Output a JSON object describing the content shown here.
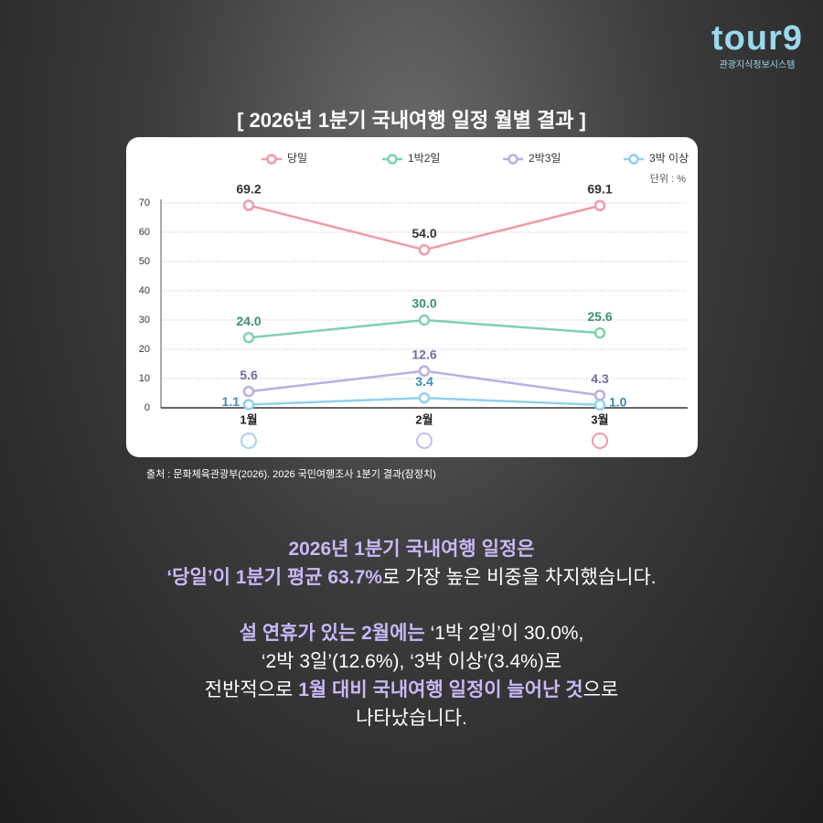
{
  "logo": {
    "name": "tour9",
    "subtitle": "관광지식정보시스템"
  },
  "chart_data": {
    "type": "line",
    "title": "[ 2026년 1분기 국내여행 일정 월별 결과 ]",
    "unit_label": "단위 : %",
    "categories": [
      "1월",
      "2월",
      "3월"
    ],
    "series": [
      {
        "name": "당일",
        "color": "#ee9aaa",
        "label_color": "#333333",
        "values": [
          69.2,
          54.0,
          69.1
        ],
        "value_labels": [
          "69.2",
          "54.0",
          "69.1"
        ]
      },
      {
        "name": "1박2일",
        "color": "#7fd0ae",
        "label_color": "#3a8f74",
        "values": [
          24.0,
          30.0,
          25.6
        ],
        "value_labels": [
          "24.0",
          "30.0",
          "25.6"
        ]
      },
      {
        "name": "2박3일",
        "color": "#bcaee0",
        "label_color": "#7767a6",
        "values": [
          5.6,
          12.6,
          4.3
        ],
        "value_labels": [
          "5.6",
          "12.6",
          "4.3"
        ]
      },
      {
        "name": "3박 이상",
        "color": "#8fd2ee",
        "label_color": "#3b8db3",
        "values": [
          1.1,
          3.4,
          1.0
        ],
        "value_labels": [
          "1.1",
          "3.4",
          "1.0"
        ]
      }
    ],
    "ylim": [
      0,
      70
    ],
    "yticks": [
      0,
      10,
      20,
      30,
      40,
      50,
      60,
      70
    ],
    "grid": true,
    "legend": "top",
    "source": "출처 : 문화체육관광부(2026). 2026 국민여행조사 1분기 결과(잠정치)"
  },
  "text": {
    "lines": [
      [
        "2026년 1분기 국내여행 일정은"
      ],
      [
        "‘당일’이 1분기 평균 63.7%",
        "로 가장 높은 비중을 차지했습니다."
      ],
      [
        "설 연휴가 있는 2월에는",
        " ‘1박 2일’이 30.0%,"
      ],
      [
        "‘2박 3일’(12.6%), ‘3박 이상’(3.4%)로"
      ],
      [
        "전반적으로 ",
        "1월 대비 국내여행 일정이 늘어난 것",
        "으로"
      ],
      [
        "나타났습니다."
      ]
    ]
  }
}
